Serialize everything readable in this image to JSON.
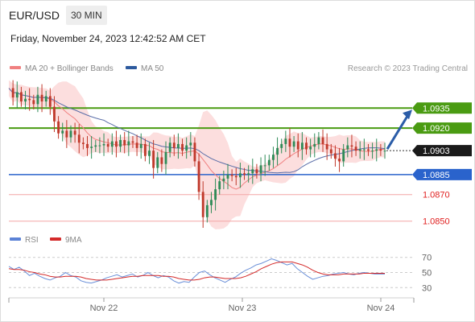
{
  "header": {
    "symbol": "EUR/USD",
    "timeframe": "30 MIN",
    "timestamp": "Friday, November 24, 2023 12:42:52 AM CET"
  },
  "legend": {
    "ma20": "MA 20 + Bollinger Bands",
    "ma50": "MA 50",
    "copyright": "Research © 2023 Trading Central"
  },
  "rsi_legend": {
    "rsi": "RSI",
    "ma9": "9MA"
  },
  "colors": {
    "up": "#2e8b57",
    "down": "#c0392b",
    "bollinger": "#fcdede",
    "ma20": "#f08080",
    "ma50": "#5b6ea8",
    "resistance": "#4a9b12",
    "support": "#2a63cc",
    "support_red": "#e02020",
    "rsi": "#6a8fd8",
    "rsi_ma": "#d42a2a",
    "arrow": "#2b5da8"
  },
  "chart_data": [
    {
      "type": "candlestick",
      "title": "EUR/USD",
      "price_ylim": [
        1.0845,
        1.096
      ],
      "x_tick_labels": [
        "Nov 22",
        "Nov 23",
        "Nov 24"
      ],
      "last_price": "1.0903",
      "levels": [
        {
          "label": "1.0935",
          "value": 1.0935,
          "kind": "resistance"
        },
        {
          "label": "1.0920",
          "value": 1.092,
          "kind": "resistance"
        },
        {
          "label": "1.0903",
          "value": 1.0903,
          "kind": "last"
        },
        {
          "label": "1.0885",
          "value": 1.0885,
          "kind": "pivot"
        },
        {
          "label": "1.0870",
          "value": 1.087,
          "kind": "support"
        },
        {
          "label": "1.0850",
          "value": 1.085,
          "kind": "support"
        }
      ],
      "close_path": [
        1.095,
        1.0943,
        1.0947,
        1.094,
        1.0942,
        1.0941,
        1.0938,
        1.0945,
        1.094,
        1.0944,
        1.0936,
        1.0925,
        1.0916,
        1.0918,
        1.0913,
        1.0918,
        1.0915,
        1.0909,
        1.0908,
        1.0905,
        1.0906,
        1.0907,
        1.0907,
        1.0908,
        1.0906,
        1.091,
        1.0906,
        1.0911,
        1.0907,
        1.091,
        1.0909,
        1.0905,
        1.0908,
        1.0899,
        1.0903,
        1.089,
        1.0898,
        1.0893,
        1.0902,
        1.0909,
        1.0905,
        1.0908,
        1.0903,
        1.0907,
        1.0909,
        1.0895,
        1.0872,
        1.0853,
        1.0862,
        1.0866,
        1.0874,
        1.088,
        1.0882,
        1.0885,
        1.0884,
        1.0883,
        1.0886,
        1.0885,
        1.0886,
        1.0889,
        1.0886,
        1.0892,
        1.0892,
        1.0896,
        1.09,
        1.0905,
        1.0908,
        1.0912,
        1.0906,
        1.091,
        1.0904,
        1.0909,
        1.0904,
        1.0906,
        1.0908,
        1.0913,
        1.0908,
        1.0904,
        1.0901,
        1.0897,
        1.0895,
        1.0904,
        1.0907,
        1.0906,
        1.0903,
        1.0904,
        1.0904,
        1.0903,
        1.0903,
        1.0904,
        1.0903,
        1.0903
      ],
      "forecast_target": 1.0935
    },
    {
      "type": "line",
      "title": "RSI",
      "ylim": [
        25,
        75
      ],
      "y_ticks": [
        70,
        50,
        30
      ],
      "series": [
        {
          "name": "RSI",
          "values": [
            58,
            54,
            57,
            52,
            46,
            49,
            45,
            42,
            40,
            43,
            45,
            50,
            46,
            44,
            39,
            37,
            36,
            38,
            40,
            43,
            45,
            47,
            44,
            46,
            48,
            44,
            46,
            50,
            46,
            43,
            46,
            44,
            39,
            36,
            38,
            37,
            44,
            50,
            52,
            47,
            43,
            40,
            37,
            41,
            44,
            49,
            53,
            56,
            60,
            62,
            65,
            68,
            66,
            63,
            60,
            62,
            55,
            50,
            45,
            41,
            43,
            45,
            46,
            48,
            49,
            50,
            48,
            47,
            49,
            50,
            49,
            48,
            48,
            48
          ]
        },
        {
          "name": "9MA",
          "values": [
            55,
            54,
            54,
            53,
            51,
            50,
            48,
            47,
            45,
            44,
            44,
            45,
            45,
            45,
            44,
            42,
            41,
            40,
            40,
            40,
            41,
            42,
            43,
            44,
            45,
            45,
            46,
            46,
            46,
            46,
            45,
            45,
            44,
            42,
            41,
            40,
            40,
            41,
            43,
            44,
            44,
            43,
            42,
            42,
            42,
            43,
            45,
            48,
            51,
            55,
            58,
            61,
            63,
            64,
            64,
            64,
            62,
            60,
            57,
            53,
            50,
            48,
            47,
            47,
            47,
            48,
            48,
            48,
            48,
            49,
            49,
            49,
            49,
            49
          ]
        }
      ]
    }
  ]
}
